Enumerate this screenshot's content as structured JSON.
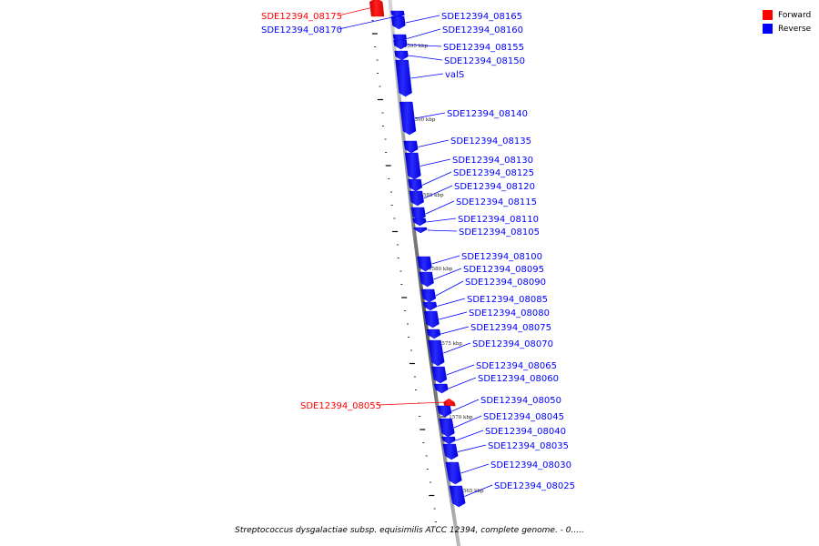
{
  "legend": {
    "forward": {
      "label": "Forward",
      "color": "#ff0000"
    },
    "reverse": {
      "label": "Reverse",
      "color": "#0000ff"
    }
  },
  "caption": "Streptococcus dysgalactiae subsp. equisimilis ATCC 12394, complete genome. - 0.....",
  "kbp_labels": [
    "1595 kbp",
    "1590 kbp",
    "1585 kbp",
    "1580 kbp",
    "1575 kbp",
    "1570 kbp",
    "1565 kbp"
  ],
  "genes": [
    {
      "label": "SDE12394_08175",
      "strand": "forward"
    },
    {
      "label": "SDE12394_08170",
      "strand": "reverse"
    },
    {
      "label": "SDE12394_08165",
      "strand": "reverse"
    },
    {
      "label": "SDE12394_08160",
      "strand": "reverse"
    },
    {
      "label": "SDE12394_08155",
      "strand": "reverse"
    },
    {
      "label": "SDE12394_08150",
      "strand": "reverse"
    },
    {
      "label": "valS",
      "strand": "reverse"
    },
    {
      "label": "SDE12394_08140",
      "strand": "reverse"
    },
    {
      "label": "SDE12394_08135",
      "strand": "reverse"
    },
    {
      "label": "SDE12394_08130",
      "strand": "reverse"
    },
    {
      "label": "SDE12394_08125",
      "strand": "reverse"
    },
    {
      "label": "SDE12394_08120",
      "strand": "reverse"
    },
    {
      "label": "SDE12394_08115",
      "strand": "reverse"
    },
    {
      "label": "SDE12394_08110",
      "strand": "reverse"
    },
    {
      "label": "SDE12394_08105",
      "strand": "reverse"
    },
    {
      "label": "SDE12394_08100",
      "strand": "reverse"
    },
    {
      "label": "SDE12394_08095",
      "strand": "reverse"
    },
    {
      "label": "SDE12394_08090",
      "strand": "reverse"
    },
    {
      "label": "SDE12394_08085",
      "strand": "reverse"
    },
    {
      "label": "SDE12394_08080",
      "strand": "reverse"
    },
    {
      "label": "SDE12394_08075",
      "strand": "reverse"
    },
    {
      "label": "SDE12394_08070",
      "strand": "reverse"
    },
    {
      "label": "SDE12394_08065",
      "strand": "reverse"
    },
    {
      "label": "SDE12394_08060",
      "strand": "reverse"
    },
    {
      "label": "SDE12394_08055",
      "strand": "forward"
    },
    {
      "label": "SDE12394_08050",
      "strand": "reverse"
    },
    {
      "label": "SDE12394_08045",
      "strand": "reverse"
    },
    {
      "label": "SDE12394_08040",
      "strand": "reverse"
    },
    {
      "label": "SDE12394_08035",
      "strand": "reverse"
    },
    {
      "label": "SDE12394_08030",
      "strand": "reverse"
    },
    {
      "label": "SDE12394_08025",
      "strand": "reverse"
    }
  ]
}
